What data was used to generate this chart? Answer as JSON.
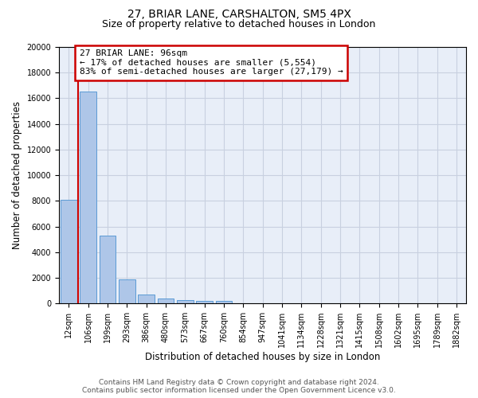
{
  "title_line1": "27, BRIAR LANE, CARSHALTON, SM5 4PX",
  "title_line2": "Size of property relative to detached houses in London",
  "xlabel": "Distribution of detached houses by size in London",
  "ylabel": "Number of detached properties",
  "categories": [
    "12sqm",
    "106sqm",
    "199sqm",
    "293sqm",
    "386sqm",
    "480sqm",
    "573sqm",
    "667sqm",
    "760sqm",
    "854sqm",
    "947sqm",
    "1041sqm",
    "1134sqm",
    "1228sqm",
    "1321sqm",
    "1415sqm",
    "1508sqm",
    "1602sqm",
    "1695sqm",
    "1789sqm",
    "1882sqm"
  ],
  "values": [
    8100,
    16500,
    5300,
    1850,
    700,
    380,
    280,
    220,
    180,
    0,
    0,
    0,
    0,
    0,
    0,
    0,
    0,
    0,
    0,
    0,
    0
  ],
  "bar_color": "#aec6e8",
  "bar_edge_color": "#5b9bd5",
  "vline_color": "#cc0000",
  "annotation_text": "27 BRIAR LANE: 96sqm\n← 17% of detached houses are smaller (5,554)\n83% of semi-detached houses are larger (27,179) →",
  "annotation_box_facecolor": "#ffffff",
  "annotation_border_color": "#cc0000",
  "ylim_max": 20000,
  "yticks": [
    0,
    2000,
    4000,
    6000,
    8000,
    10000,
    12000,
    14000,
    16000,
    18000,
    20000
  ],
  "grid_color": "#c8d0e0",
  "plot_bg_color": "#e8eef8",
  "footer_text": "Contains HM Land Registry data © Crown copyright and database right 2024.\nContains public sector information licensed under the Open Government Licence v3.0.",
  "title_fontsize": 10,
  "subtitle_fontsize": 9,
  "axis_label_fontsize": 8.5,
  "tick_fontsize": 7,
  "annotation_fontsize": 8,
  "footer_fontsize": 6.5
}
